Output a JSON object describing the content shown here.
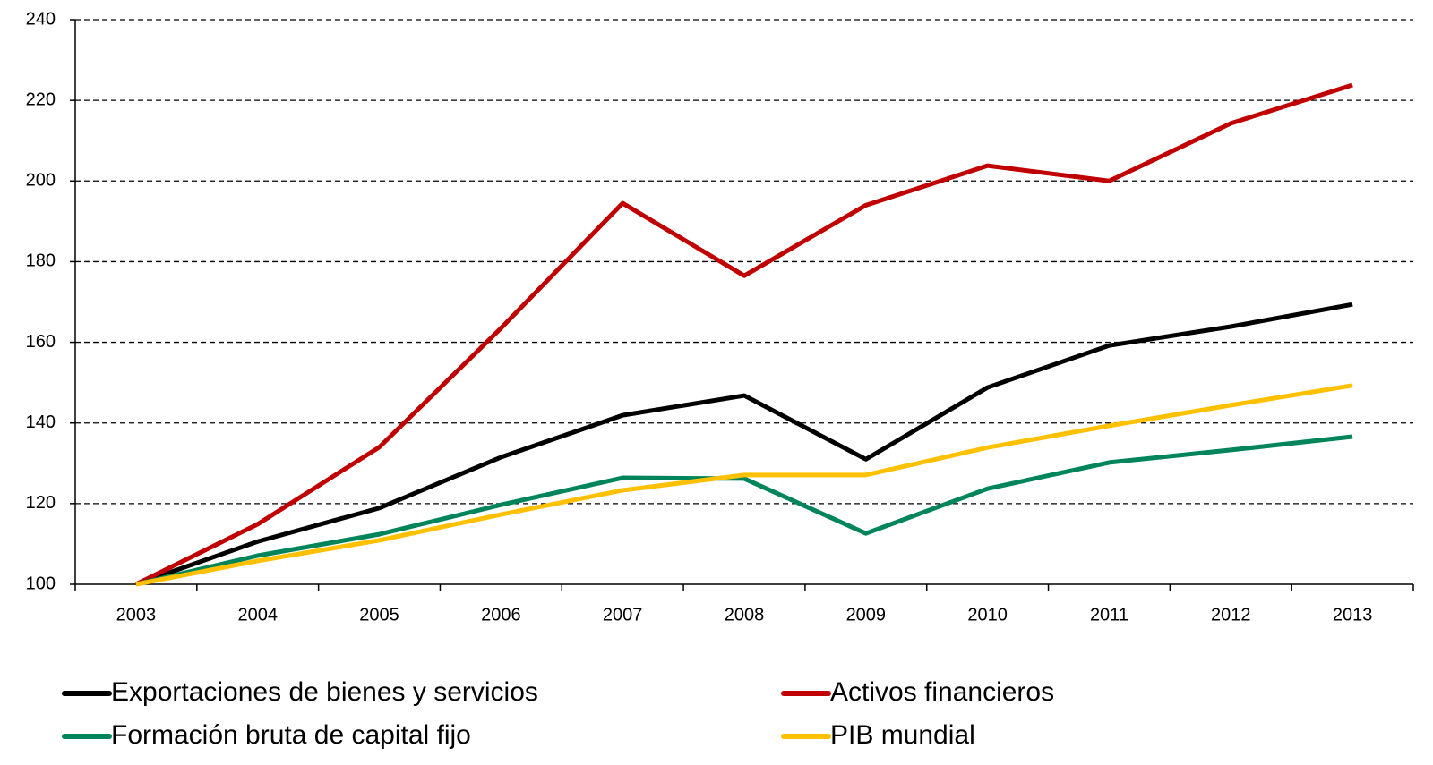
{
  "chart_data": {
    "type": "line",
    "categories": [
      "2003",
      "2004",
      "2005",
      "2006",
      "2007",
      "2008",
      "2009",
      "2010",
      "2011",
      "2012",
      "2013"
    ],
    "series": [
      {
        "name": "Exportaciones de bienes y servicios",
        "color": "#000000",
        "values": [
          100,
          110.6,
          118.9,
          131.5,
          141.9,
          146.8,
          131,
          148.8,
          159.2,
          163.9,
          169.4
        ]
      },
      {
        "name": "Activos financieros",
        "color": "#c00000",
        "values": [
          100,
          114.9,
          134,
          163.5,
          194.5,
          176.5,
          194,
          203.8,
          200,
          214.3,
          223.8
        ]
      },
      {
        "name": "Formación bruta de capital fijo",
        "color": "#00855a",
        "values": [
          100,
          107.1,
          112.4,
          119.7,
          126.4,
          126.2,
          112.6,
          123.7,
          130.2,
          133.3,
          136.6
        ]
      },
      {
        "name": "PIB mundial",
        "color": "#ffc000",
        "values": [
          100,
          105.8,
          110.9,
          117.3,
          123.3,
          127.1,
          127.1,
          133.9,
          139.3,
          144.4,
          149.3
        ]
      }
    ],
    "ylim": [
      100,
      240
    ],
    "yticks": [
      100,
      120,
      140,
      160,
      180,
      200,
      220,
      240
    ],
    "grid": true
  }
}
